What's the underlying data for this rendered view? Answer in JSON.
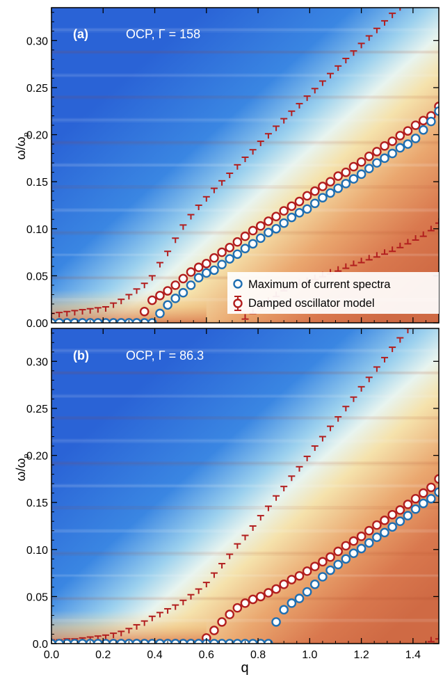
{
  "figure": {
    "xlabel": "q",
    "colors": {
      "max_series": "#1f6fb2",
      "damped_series": "#b21e1e",
      "marker_fill": "#ffffff",
      "legend_bg": "#ffffff",
      "axis": "#000000",
      "panel_text": "#ffffff"
    },
    "legend": {
      "placement": "bottom-right of panel (a)",
      "entries": [
        "Maximum of current spectra",
        "Damped oscillator model"
      ]
    }
  },
  "chart_data": [
    {
      "type": "heatmap",
      "panel_label": "(a)",
      "title": "OCP, Γ = 158",
      "xlabel": "",
      "ylabel": "ω/ωp",
      "xlim": [
        0.0,
        1.5
      ],
      "ylim": [
        0.0,
        0.335
      ],
      "x_ticks": [],
      "y_ticks": [
        "0.00",
        "0.05",
        "0.10",
        "0.15",
        "0.20",
        "0.25",
        "0.30"
      ],
      "series": [
        {
          "name": "Maximum of current spectra",
          "marker": "circle",
          "color": "#1f6fb2",
          "x": [
            0.0,
            0.03,
            0.06,
            0.09,
            0.12,
            0.15,
            0.18,
            0.21,
            0.24,
            0.27,
            0.3,
            0.33,
            0.36,
            0.39,
            0.42,
            0.45,
            0.48,
            0.51,
            0.54,
            0.57,
            0.6,
            0.63,
            0.66,
            0.69,
            0.72,
            0.75,
            0.78,
            0.81,
            0.84,
            0.87,
            0.9,
            0.93,
            0.96,
            0.99,
            1.02,
            1.05,
            1.08,
            1.11,
            1.14,
            1.17,
            1.2,
            1.23,
            1.26,
            1.29,
            1.32,
            1.35,
            1.38,
            1.41,
            1.44,
            1.47,
            1.5
          ],
          "y": [
            0,
            0,
            0,
            0,
            0,
            0,
            0,
            0,
            0,
            0,
            0,
            0,
            0,
            0,
            0.01,
            0.019,
            0.026,
            0.032,
            0.04,
            0.048,
            0.053,
            0.056,
            0.062,
            0.068,
            0.073,
            0.079,
            0.084,
            0.09,
            0.096,
            0.1,
            0.106,
            0.112,
            0.117,
            0.121,
            0.127,
            0.133,
            0.138,
            0.143,
            0.148,
            0.153,
            0.158,
            0.164,
            0.17,
            0.175,
            0.18,
            0.186,
            0.19,
            0.196,
            0.205,
            0.214,
            0.225
          ]
        },
        {
          "name": "Damped oscillator model",
          "marker": "circle+errorbar",
          "color": "#b21e1e",
          "x": [
            0.0,
            0.03,
            0.06,
            0.09,
            0.12,
            0.15,
            0.18,
            0.21,
            0.24,
            0.27,
            0.3,
            0.33,
            0.36,
            0.39,
            0.42,
            0.45,
            0.48,
            0.51,
            0.54,
            0.57,
            0.6,
            0.63,
            0.66,
            0.69,
            0.72,
            0.75,
            0.78,
            0.81,
            0.84,
            0.87,
            0.9,
            0.93,
            0.96,
            0.99,
            1.02,
            1.05,
            1.08,
            1.11,
            1.14,
            1.17,
            1.2,
            1.23,
            1.26,
            1.29,
            1.32,
            1.35,
            1.38,
            1.41,
            1.44,
            1.47,
            1.5
          ],
          "y": [
            0,
            0,
            0,
            0,
            0,
            0,
            0,
            0,
            0,
            0,
            0,
            0,
            0.012,
            0.024,
            0.029,
            0.034,
            0.04,
            0.047,
            0.054,
            0.059,
            0.063,
            0.069,
            0.075,
            0.08,
            0.086,
            0.092,
            0.098,
            0.103,
            0.108,
            0.113,
            0.119,
            0.124,
            0.129,
            0.135,
            0.14,
            0.145,
            0.15,
            0.156,
            0.16,
            0.166,
            0.171,
            0.177,
            0.182,
            0.188,
            0.193,
            0.199,
            0.204,
            0.21,
            0.215,
            0.22,
            0.23
          ],
          "upper_error": [
            0.01,
            0.011,
            0.012,
            0.013,
            0.014,
            0.015,
            0.016,
            0.017,
            0.021,
            0.025,
            0.03,
            0.036,
            0.042,
            0.05,
            0.064,
            0.076,
            0.09,
            0.104,
            0.115,
            0.125,
            0.134,
            0.143,
            0.151,
            0.159,
            0.168,
            0.176,
            0.184,
            0.193,
            0.201,
            0.209,
            0.217,
            0.225,
            0.233,
            0.241,
            0.249,
            0.257,
            0.265,
            0.273,
            0.281,
            0.289,
            0.297,
            0.305,
            0.313,
            0.321,
            0.329,
            0.337,
            0.345,
            0.353,
            0.361,
            0.369,
            0.377
          ],
          "lower_error": [
            0,
            0,
            0,
            0,
            0,
            0,
            0,
            0,
            0,
            0,
            0,
            0,
            0,
            0,
            0,
            0,
            0,
            0,
            0,
            0,
            0,
            0,
            0,
            0,
            0,
            0.004,
            0.01,
            0.016,
            0.022,
            0.028,
            0.034,
            0.038,
            0.041,
            0.043,
            0.046,
            0.049,
            0.052,
            0.055,
            0.058,
            0.061,
            0.064,
            0.067,
            0.07,
            0.073,
            0.076,
            0.08,
            0.084,
            0.088,
            0.092,
            0.098,
            0.106
          ]
        }
      ]
    },
    {
      "type": "heatmap",
      "panel_label": "(b)",
      "title": "OCP, Γ = 86.3",
      "xlabel": "q",
      "ylabel": "ω/ωp",
      "xlim": [
        0.0,
        1.5
      ],
      "ylim": [
        0.0,
        0.335
      ],
      "x_ticks": [
        "0.0",
        "0.2",
        "0.4",
        "0.6",
        "0.8",
        "1.0",
        "1.2",
        "1.4"
      ],
      "y_ticks": [
        "0.0",
        "0.05",
        "0.10",
        "0.15",
        "0.20",
        "0.25",
        "0.30"
      ],
      "series": [
        {
          "name": "Maximum of current spectra",
          "marker": "circle",
          "color": "#1f6fb2",
          "x": [
            0.0,
            0.03,
            0.06,
            0.09,
            0.12,
            0.15,
            0.18,
            0.21,
            0.24,
            0.27,
            0.3,
            0.33,
            0.36,
            0.39,
            0.42,
            0.45,
            0.48,
            0.51,
            0.54,
            0.57,
            0.6,
            0.63,
            0.66,
            0.69,
            0.72,
            0.75,
            0.78,
            0.81,
            0.84,
            0.87,
            0.9,
            0.93,
            0.96,
            0.99,
            1.02,
            1.05,
            1.08,
            1.11,
            1.14,
            1.17,
            1.2,
            1.23,
            1.26,
            1.29,
            1.32,
            1.35,
            1.38,
            1.41,
            1.44,
            1.47,
            1.5
          ],
          "y": [
            0,
            0,
            0,
            0,
            0,
            0,
            0,
            0,
            0,
            0,
            0,
            0,
            0,
            0,
            0,
            0,
            0,
            0,
            0,
            0,
            0,
            0,
            0,
            0,
            0,
            0,
            0,
            0,
            0,
            0.023,
            0.036,
            0.043,
            0.048,
            0.055,
            0.063,
            0.071,
            0.078,
            0.084,
            0.09,
            0.096,
            0.101,
            0.107,
            0.113,
            0.118,
            0.124,
            0.13,
            0.136,
            0.143,
            0.149,
            0.154,
            0.161
          ]
        },
        {
          "name": "Damped oscillator model",
          "marker": "circle+errorbar",
          "color": "#b21e1e",
          "x": [
            0.0,
            0.03,
            0.06,
            0.09,
            0.12,
            0.15,
            0.18,
            0.21,
            0.24,
            0.27,
            0.3,
            0.33,
            0.36,
            0.39,
            0.42,
            0.45,
            0.48,
            0.51,
            0.54,
            0.57,
            0.6,
            0.63,
            0.66,
            0.69,
            0.72,
            0.75,
            0.78,
            0.81,
            0.84,
            0.87,
            0.9,
            0.93,
            0.96,
            0.99,
            1.02,
            1.05,
            1.08,
            1.11,
            1.14,
            1.17,
            1.2,
            1.23,
            1.26,
            1.29,
            1.32,
            1.35,
            1.38,
            1.41,
            1.44,
            1.47,
            1.5
          ],
          "y": [
            0,
            0,
            0,
            0,
            0,
            0,
            0,
            0,
            0,
            0,
            0,
            0,
            0,
            0,
            0,
            0,
            0,
            0,
            0,
            0,
            0.006,
            0.014,
            0.023,
            0.031,
            0.038,
            0.043,
            0.047,
            0.05,
            0.054,
            0.058,
            0.063,
            0.068,
            0.072,
            0.077,
            0.082,
            0.087,
            0.092,
            0.098,
            0.104,
            0.109,
            0.114,
            0.12,
            0.126,
            0.131,
            0.137,
            0.142,
            0.148,
            0.154,
            0.16,
            0.166,
            0.175
          ],
          "upper_error": [
            0.004,
            0.004,
            0.005,
            0.005,
            0.006,
            0.007,
            0.008,
            0.009,
            0.011,
            0.013,
            0.016,
            0.02,
            0.024,
            0.029,
            0.033,
            0.037,
            0.041,
            0.046,
            0.052,
            0.058,
            0.065,
            0.075,
            0.085,
            0.095,
            0.106,
            0.115,
            0.125,
            0.136,
            0.146,
            0.157,
            0.167,
            0.178,
            0.188,
            0.199,
            0.21,
            0.22,
            0.231,
            0.241,
            0.252,
            0.262,
            0.273,
            0.283,
            0.294,
            0.304,
            0.315,
            0.325,
            0.335,
            0.346,
            0.356,
            0.367,
            0.378
          ],
          "lower_error": [
            0,
            0,
            0,
            0,
            0,
            0,
            0,
            0,
            0,
            0,
            0,
            0,
            0,
            0,
            0,
            0,
            0,
            0,
            0,
            0,
            0,
            0,
            0,
            0,
            0,
            0,
            0,
            0,
            0,
            0,
            0,
            0,
            0,
            0,
            0,
            0,
            0,
            0,
            0,
            0,
            0,
            0,
            0,
            0,
            0,
            0,
            0,
            0,
            0,
            0.002,
            0.005
          ]
        }
      ]
    }
  ]
}
